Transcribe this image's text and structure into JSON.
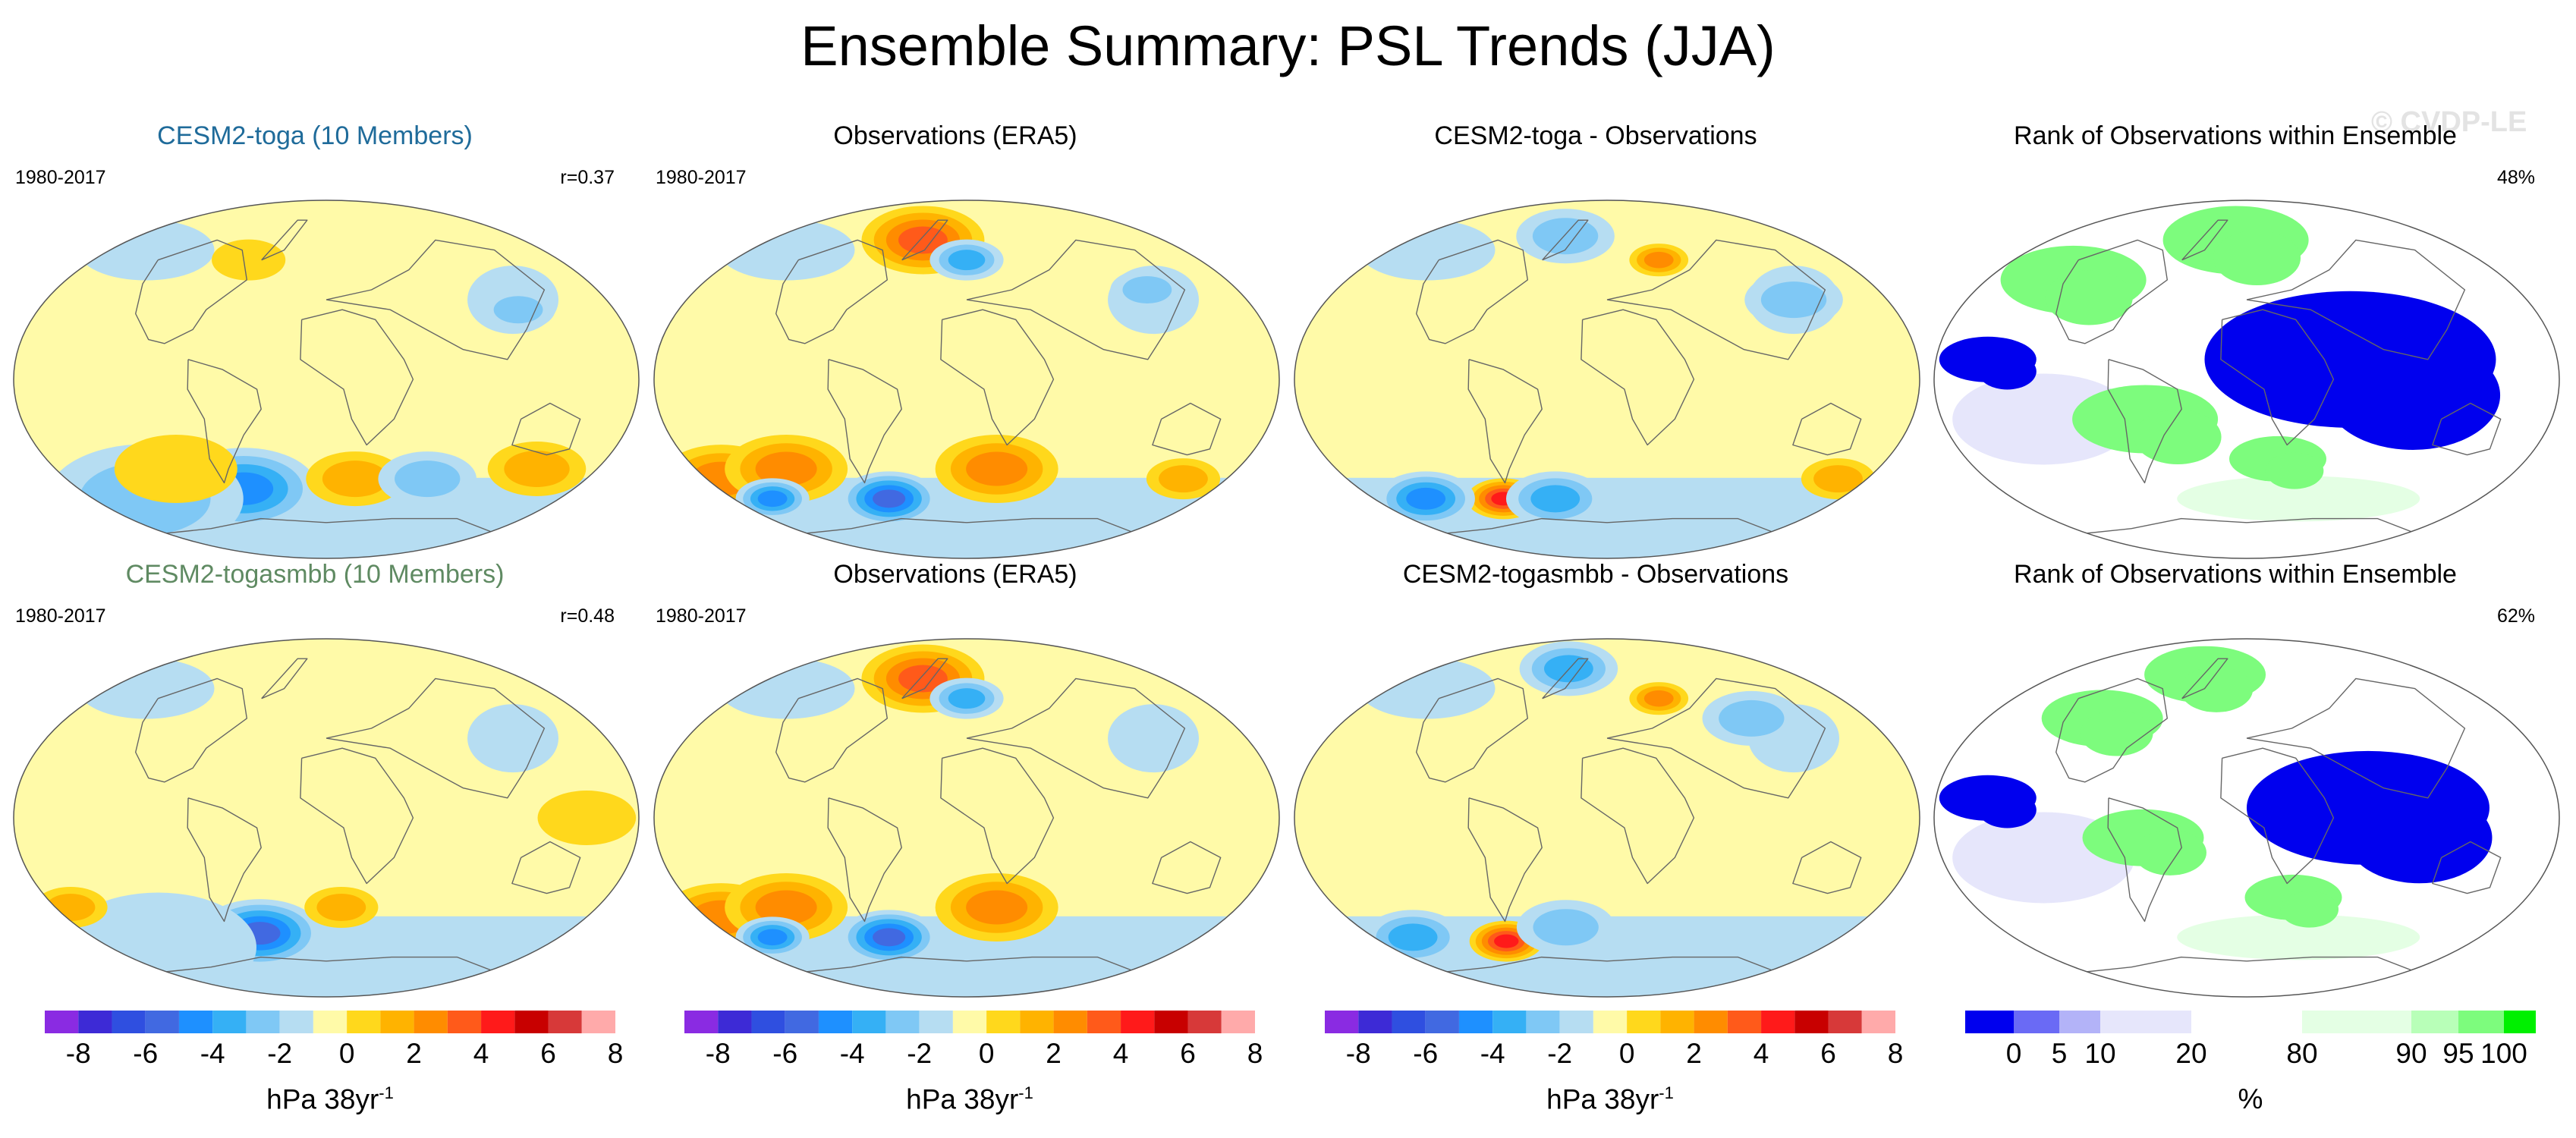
{
  "header": {
    "title": "Ensemble Summary: PSL Trends (JJA)",
    "watermark": "© CVDP-LE"
  },
  "colors": {
    "title_toga": "#1f6b9a",
    "title_togasmbb": "#5f8a62",
    "trend_scale": [
      "#8a2be2",
      "#3d2ad6",
      "#2f4fe0",
      "#4169e1",
      "#1e90ff",
      "#35b0f5",
      "#7fc8f5",
      "#b6ddf2",
      "#fffaa8",
      "#ffd81c",
      "#ffb300",
      "#ff8c00",
      "#ff5a1a",
      "#ff1a1a",
      "#c80000",
      "#d73939",
      "#ffaaaa"
    ],
    "rank_scale": [
      "#0000ee",
      "#6a6af5",
      "#b3b3f8",
      "#e6e6fb",
      "#ffffff",
      "#e4ffe4",
      "#b8ffb8",
      "#7dfc7d",
      "#00f000"
    ],
    "ocean_background": "#fffaa8",
    "coast": "#666666"
  },
  "rows": [
    {
      "panels": [
        {
          "title": "CESM2-toga (10 Members)",
          "period": "1980-2017",
          "stat": "r=0.37",
          "kind": "ensemble"
        },
        {
          "title": "Observations (ERA5)",
          "period": "1980-2017",
          "stat": "",
          "kind": "obs"
        },
        {
          "title": "CESM2-toga - Observations",
          "period": "",
          "stat": "",
          "kind": "diff"
        },
        {
          "title": "Rank of Observations within Ensemble",
          "period": "",
          "stat": "48%",
          "kind": "rank"
        }
      ]
    },
    {
      "panels": [
        {
          "title": "CESM2-togasmbb (10 Members)",
          "period": "1980-2017",
          "stat": "r=0.48",
          "kind": "ensemble"
        },
        {
          "title": "Observations (ERA5)",
          "period": "1980-2017",
          "stat": "",
          "kind": "obs"
        },
        {
          "title": "CESM2-togasmbb - Observations",
          "period": "",
          "stat": "",
          "kind": "diff"
        },
        {
          "title": "Rank of Observations within Ensemble",
          "period": "",
          "stat": "62%",
          "kind": "rank"
        }
      ]
    }
  ],
  "colorbars": {
    "trend": {
      "ticks": [
        "-8",
        "-6",
        "-4",
        "-2",
        "0",
        "2",
        "4",
        "6",
        "8"
      ],
      "units": "hPa 38yr",
      "units_sup": "-1"
    },
    "rank": {
      "ticks": [
        "0",
        "5",
        "10",
        "20",
        "80",
        "90",
        "95",
        "100"
      ],
      "units": "%"
    }
  },
  "chart_data": [
    {
      "type": "heatmap",
      "title": "CESM2-toga (10 Members)",
      "subtitle": "1980-2017",
      "annotation": "r=0.37",
      "projection": "robinson",
      "units": "hPa 38yr-1",
      "levels": [
        -8,
        -7,
        -6,
        -5,
        -4,
        -3,
        -2,
        -1,
        0,
        1,
        2,
        3,
        4,
        5,
        6,
        7,
        8
      ],
      "features": [
        {
          "lon": -60,
          "lat": -55,
          "value": -4,
          "extent": 30
        },
        {
          "lon": -140,
          "lat": -60,
          "value": -2,
          "extent": 40
        },
        {
          "lon": 120,
          "lat": 35,
          "value": -2,
          "extent": 15
        },
        {
          "lon": 20,
          "lat": -50,
          "value": 2,
          "extent": 20
        },
        {
          "lon": 140,
          "lat": -45,
          "value": 2,
          "extent": 20
        },
        {
          "lon": -100,
          "lat": -45,
          "value": 1,
          "extent": 25
        },
        {
          "lon": 70,
          "lat": -50,
          "value": -2,
          "extent": 20
        },
        {
          "lon": -60,
          "lat": 60,
          "value": 1,
          "extent": 15
        }
      ]
    },
    {
      "type": "heatmap",
      "title": "Observations (ERA5)",
      "subtitle": "1980-2017",
      "projection": "robinson",
      "units": "hPa 38yr-1",
      "levels": [
        -8,
        -7,
        -6,
        -5,
        -4,
        -3,
        -2,
        -1,
        0,
        1,
        2,
        3,
        4,
        5,
        6,
        7,
        8
      ],
      "features": [
        {
          "lon": -40,
          "lat": 70,
          "value": 4,
          "extent": 25
        },
        {
          "lon": 0,
          "lat": 60,
          "value": -3,
          "extent": 15
        },
        {
          "lon": 20,
          "lat": -45,
          "value": 3,
          "extent": 25
        },
        {
          "lon": -170,
          "lat": -50,
          "value": 3,
          "extent": 25
        },
        {
          "lon": -120,
          "lat": -45,
          "value": 3,
          "extent": 25
        },
        {
          "lon": -150,
          "lat": -60,
          "value": -4,
          "extent": 15
        },
        {
          "lon": -60,
          "lat": -60,
          "value": -5,
          "extent": 20
        },
        {
          "lon": 120,
          "lat": 45,
          "value": -2,
          "extent": 15
        },
        {
          "lon": 150,
          "lat": -50,
          "value": 2,
          "extent": 15
        }
      ]
    },
    {
      "type": "heatmap",
      "title": "CESM2-toga - Observations",
      "projection": "robinson",
      "units": "hPa 38yr-1",
      "levels": [
        -8,
        -7,
        -6,
        -5,
        -4,
        -3,
        -2,
        -1,
        0,
        1,
        2,
        3,
        4,
        5,
        6,
        7,
        8
      ],
      "features": [
        {
          "lon": -80,
          "lat": -60,
          "value": 5,
          "extent": 15
        },
        {
          "lon": -140,
          "lat": -60,
          "value": -4,
          "extent": 20
        },
        {
          "lon": -40,
          "lat": -60,
          "value": -3,
          "extent": 20
        },
        {
          "lon": 40,
          "lat": 60,
          "value": 3,
          "extent": 12
        },
        {
          "lon": -40,
          "lat": 72,
          "value": -2,
          "extent": 20
        },
        {
          "lon": 120,
          "lat": 40,
          "value": -2,
          "extent": 20
        },
        {
          "lon": 160,
          "lat": -50,
          "value": 2,
          "extent": 15
        }
      ]
    },
    {
      "type": "heatmap",
      "title": "Rank of Observations within Ensemble",
      "annotation": "48%",
      "projection": "robinson",
      "units": "%",
      "levels": [
        0,
        5,
        10,
        20,
        80,
        90,
        95,
        100
      ],
      "features": [
        {
          "lon": 60,
          "lat": 10,
          "value": 0,
          "extent": 60
        },
        {
          "lon": -150,
          "lat": 10,
          "value": 0,
          "extent": 20
        },
        {
          "lon": -120,
          "lat": 50,
          "value": 100,
          "extent": 30
        },
        {
          "lon": -60,
          "lat": -20,
          "value": 100,
          "extent": 30
        },
        {
          "lon": -10,
          "lat": 70,
          "value": 100,
          "extent": 30
        },
        {
          "lon": 20,
          "lat": -40,
          "value": 100,
          "extent": 20
        }
      ]
    },
    {
      "type": "heatmap",
      "title": "CESM2-togasmbb (10 Members)",
      "subtitle": "1980-2017",
      "annotation": "r=0.48",
      "projection": "robinson",
      "units": "hPa 38yr-1",
      "levels": [
        -8,
        -7,
        -6,
        -5,
        -4,
        -3,
        -2,
        -1,
        0,
        1,
        2,
        3,
        4,
        5,
        6,
        7,
        8
      ],
      "features": [
        {
          "lon": -50,
          "lat": -58,
          "value": -5,
          "extent": 25
        },
        {
          "lon": -140,
          "lat": -65,
          "value": -1,
          "extent": 40
        },
        {
          "lon": 150,
          "lat": 0,
          "value": 1,
          "extent": 20
        },
        {
          "lon": -170,
          "lat": -45,
          "value": 2,
          "extent": 15
        },
        {
          "lon": 10,
          "lat": -45,
          "value": 2,
          "extent": 15
        },
        {
          "lon": 120,
          "lat": 40,
          "value": -1,
          "extent": 15
        }
      ]
    },
    {
      "type": "heatmap",
      "title": "Observations (ERA5)",
      "subtitle": "1980-2017",
      "projection": "robinson",
      "units": "hPa 38yr-1",
      "levels": [
        -8,
        -7,
        -6,
        -5,
        -4,
        -3,
        -2,
        -1,
        0,
        1,
        2,
        3,
        4,
        5,
        6,
        7,
        8
      ],
      "features": [
        {
          "lon": -40,
          "lat": 70,
          "value": 4,
          "extent": 25
        },
        {
          "lon": 0,
          "lat": 60,
          "value": -3,
          "extent": 15
        },
        {
          "lon": 20,
          "lat": -45,
          "value": 3,
          "extent": 25
        },
        {
          "lon": -170,
          "lat": -50,
          "value": 3,
          "extent": 25
        },
        {
          "lon": -120,
          "lat": -45,
          "value": 3,
          "extent": 25
        },
        {
          "lon": -150,
          "lat": -60,
          "value": -4,
          "extent": 15
        },
        {
          "lon": -60,
          "lat": -60,
          "value": -5,
          "extent": 20
        }
      ]
    },
    {
      "type": "heatmap",
      "title": "CESM2-togasmbb - Observations",
      "projection": "robinson",
      "units": "hPa 38yr-1",
      "levels": [
        -8,
        -7,
        -6,
        -5,
        -4,
        -3,
        -2,
        -1,
        0,
        1,
        2,
        3,
        4,
        5,
        6,
        7,
        8
      ],
      "features": [
        {
          "lon": -80,
          "lat": -62,
          "value": 5,
          "extent": 15
        },
        {
          "lon": -150,
          "lat": -60,
          "value": -3,
          "extent": 20
        },
        {
          "lon": -30,
          "lat": -55,
          "value": -2,
          "extent": 20
        },
        {
          "lon": 40,
          "lat": 60,
          "value": 3,
          "extent": 12
        },
        {
          "lon": -40,
          "lat": 75,
          "value": -3,
          "extent": 20
        },
        {
          "lon": 100,
          "lat": 50,
          "value": -2,
          "extent": 20
        }
      ]
    },
    {
      "type": "heatmap",
      "title": "Rank of Observations within Ensemble",
      "annotation": "62%",
      "projection": "robinson",
      "units": "%",
      "levels": [
        0,
        5,
        10,
        20,
        80,
        90,
        95,
        100
      ],
      "features": [
        {
          "lon": 70,
          "lat": 5,
          "value": 0,
          "extent": 50
        },
        {
          "lon": -150,
          "lat": 10,
          "value": 0,
          "extent": 20
        },
        {
          "lon": -100,
          "lat": 50,
          "value": 100,
          "extent": 25
        },
        {
          "lon": -40,
          "lat": 72,
          "value": 100,
          "extent": 25
        },
        {
          "lon": -60,
          "lat": -10,
          "value": 100,
          "extent": 25
        },
        {
          "lon": 30,
          "lat": -40,
          "value": 100,
          "extent": 20
        }
      ]
    }
  ]
}
